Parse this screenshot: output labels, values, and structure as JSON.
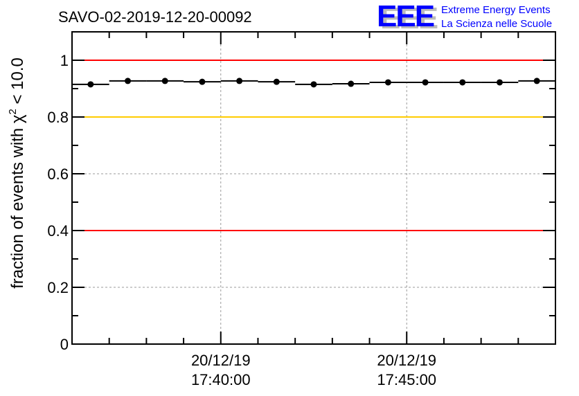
{
  "chart_data": {
    "type": "scatter",
    "title": "SAVO-02-2019-12-20-00092",
    "xlabel": "",
    "ylabel": "fraction of events with χ² < 10.0",
    "ylabel_parts": {
      "main": "fraction of events with ",
      "chi": "χ",
      "sup": "2",
      "rest": " < 10.0"
    },
    "xlim_minutes": [
      0,
      13
    ],
    "x_origin": "20/12/19 17:36:00",
    "ylim": [
      0,
      1.1
    ],
    "yticks": [
      0,
      0.2,
      0.4,
      0.6,
      0.8,
      1
    ],
    "ytick_labels": [
      "0",
      "0.2",
      "0.4",
      "0.6",
      "0.8",
      "1"
    ],
    "xticks_minutes": [
      4,
      9
    ],
    "xtick_labels": [
      [
        "20/12/19",
        "17:40:00"
      ],
      [
        "20/12/19",
        "17:45:00"
      ]
    ],
    "grid": true,
    "series": [
      {
        "name": "fraction",
        "x_minutes": [
          0.5,
          1.5,
          2.5,
          3.5,
          4.5,
          5.5,
          6.5,
          7.5,
          8.5,
          9.5,
          10.5,
          11.5,
          12.5
        ],
        "values": [
          0.915,
          0.927,
          0.927,
          0.924,
          0.927,
          0.924,
          0.915,
          0.917,
          0.922,
          0.922,
          0.922,
          0.922,
          0.927
        ],
        "color": "#000000"
      }
    ],
    "reference_lines": [
      {
        "y": 1.0,
        "color": "#ff0000"
      },
      {
        "y": 0.8,
        "color": "#ffcc00"
      },
      {
        "y": 0.4,
        "color": "#ff0000"
      }
    ]
  },
  "logo": {
    "text": "EEE",
    "line1": "Extreme Energy Events",
    "line2": "La Scienza nelle Scuole",
    "color": "#0000ff"
  }
}
